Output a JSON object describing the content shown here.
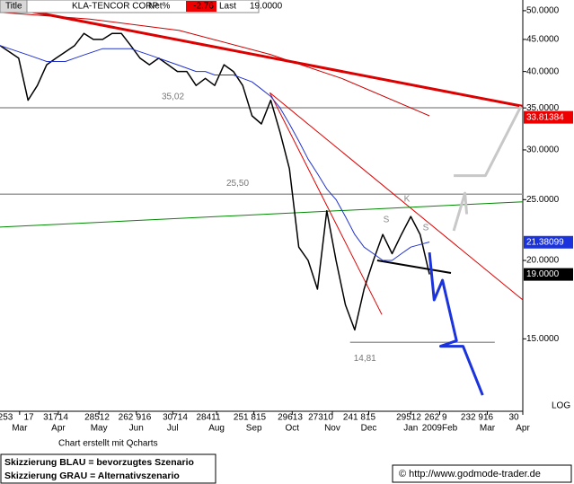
{
  "chart_data": {
    "type": "line",
    "header": {
      "button": "Title",
      "symbol": "KLA-TENCOR CORP",
      "net_label": "Net%",
      "net_value": -2.76,
      "last_label": "Last",
      "last_value": {
        "value": 19,
        "label": "19.0000"
      }
    },
    "log_scale": true,
    "y_scale_label": "LOG",
    "ylim": [
      11.5,
      52
    ],
    "yticks": [
      {
        "value": 15,
        "label": "15.0000"
      },
      {
        "value": 20,
        "label": "20.0000"
      },
      {
        "value": 25,
        "label": "25.0000"
      },
      {
        "value": 30,
        "label": "30.0000"
      },
      {
        "value": 35,
        "label": "35.0000"
      },
      {
        "value": 40,
        "label": "40.0000"
      },
      {
        "value": 45,
        "label": "45.0000"
      },
      {
        "value": 50,
        "label": "50.0000"
      }
    ],
    "xlim": [
      0,
      56
    ],
    "xticks": [
      {
        "value": 2.1,
        "label": "Mar"
      },
      {
        "value": 6.25,
        "label": "Apr"
      },
      {
        "value": 10.6,
        "label": "May"
      },
      {
        "value": 14.6,
        "label": "Jun"
      },
      {
        "value": 18.5,
        "label": "Jul"
      },
      {
        "value": 23.2,
        "label": "Aug"
      },
      {
        "value": 27.2,
        "label": "Sep"
      },
      {
        "value": 31.3,
        "label": "Oct"
      },
      {
        "value": 35.6,
        "label": "Nov"
      },
      {
        "value": 39.5,
        "label": "Dec"
      },
      {
        "value": 44,
        "label": "Jan"
      },
      {
        "value": 47.1,
        "label": "2009Feb"
      },
      {
        "value": 52.2,
        "label": "Mar"
      },
      {
        "value": 56,
        "label": "Apr"
      }
    ],
    "x_day_labels": [
      "253",
      "17",
      "31714",
      "28512",
      "262",
      "916",
      "30714",
      "28411",
      "251 815",
      "29613",
      "27310",
      "241 815",
      "29512",
      "262 9",
      "232 916",
      "30"
    ],
    "series": [
      {
        "color": "#000000",
        "width": 1.5,
        "x": [
          0,
          1,
          2,
          3,
          4,
          5,
          6,
          7,
          8,
          9,
          10,
          11,
          12,
          13,
          14,
          15,
          16,
          17,
          18,
          19,
          20,
          21,
          22,
          23,
          24,
          25,
          26,
          27,
          28,
          29,
          30,
          31,
          32,
          33,
          34,
          35,
          36,
          37,
          38,
          39,
          40,
          41,
          42,
          43,
          44,
          45,
          46
        ],
        "values": [
          44,
          43,
          42,
          36,
          38,
          41,
          42,
          43,
          44,
          46,
          45,
          45,
          46,
          46,
          44,
          42,
          41,
          42,
          41,
          40,
          40,
          38,
          39,
          38,
          41,
          40,
          38,
          34,
          33,
          36,
          32,
          28,
          21,
          20,
          18,
          24,
          20,
          17,
          15.5,
          18,
          20,
          22,
          20.5,
          22,
          23.5,
          22,
          19
        ]
      },
      {
        "color": "#2233cc",
        "width": 1,
        "x": [
          0,
          1,
          2,
          3,
          4,
          5,
          6,
          7,
          8,
          9,
          10,
          11,
          12,
          13,
          14,
          15,
          16,
          17,
          18,
          19,
          20,
          21,
          22,
          23,
          24,
          25,
          26,
          27,
          28,
          29,
          30,
          31,
          32,
          33,
          34,
          35,
          36,
          37,
          38,
          39,
          40,
          41,
          42,
          43,
          44,
          45,
          46
        ],
        "values": [
          44,
          43.5,
          43,
          42.5,
          42,
          41.5,
          41.5,
          41.5,
          42,
          42.5,
          43,
          43.5,
          43.5,
          43.5,
          43.5,
          43,
          42.5,
          42,
          41.5,
          41,
          40.5,
          40,
          40,
          39.5,
          39.5,
          39.5,
          39,
          38.5,
          37.5,
          36.5,
          35,
          33,
          31,
          29,
          27.5,
          26,
          25,
          23.5,
          22,
          21,
          20.5,
          20,
          20,
          20.5,
          21,
          21.2,
          21.4
        ]
      },
      {
        "color": "#cc0000",
        "width": 1,
        "x": [
          0,
          9.6,
          19.2,
          28.9,
          36.6,
          46
        ],
        "values": [
          49.7,
          48.5,
          46.5,
          42.6,
          39,
          34
        ]
      }
    ],
    "levels": [
      {
        "value": 35.02,
        "label": "35,02",
        "x": [
          0,
          56
        ]
      },
      {
        "value": 25.5,
        "label": "25,50",
        "x": [
          0,
          56
        ]
      },
      {
        "value": 14.81,
        "label": "14,81",
        "x": [
          37.5,
          53
        ]
      }
    ],
    "trendlines": [
      {
        "color": "#dd0000",
        "width": 3,
        "x": [
          2.9,
          56
        ],
        "values": [
          50,
          35.2
        ]
      },
      {
        "color": "#dd0000",
        "width": 1,
        "x": [
          28.9,
          56
        ],
        "values": [
          37,
          17.3
        ]
      },
      {
        "color": "#dd0000",
        "width": 1,
        "x": [
          28.9,
          40.9
        ],
        "values": [
          37,
          16.4
        ]
      },
      {
        "color": "#008800",
        "width": 1,
        "x": [
          0,
          56
        ],
        "values": [
          22.6,
          24.8
        ]
      },
      {
        "color": "#000000",
        "width": 2,
        "x": [
          40.4,
          48.3
        ],
        "values": [
          20,
          19.1
        ]
      },
      {
        "color": "#1a33dd",
        "width": 3,
        "x": [
          46,
          46.5,
          47.4,
          48.9,
          47.2,
          49.6,
          51.7
        ],
        "values": [
          20.6,
          17.3,
          18.6,
          14.9,
          14.6,
          14.6,
          12.2
        ]
      },
      {
        "color": "#c8c8c8",
        "width": 3,
        "x": [
          48.6,
          49.8,
          50,
          null,
          48.6,
          52,
          55.8
        ],
        "values": [
          22.3,
          25.6,
          23.7,
          null,
          27.3,
          27.3,
          35.2
        ]
      }
    ],
    "pattern_labels": [
      "S",
      "K",
      "S"
    ],
    "price_tags": [
      {
        "value": 33.81384,
        "color": "#ee0000"
      },
      {
        "value": 21.38099,
        "color": "#1a33dd"
      },
      {
        "value": {
          "value": 19,
          "label": "19.0000"
        },
        "color": "#000000"
      }
    ]
  },
  "footer": {
    "credit": "Chart erstellt mit Qcharts",
    "legend_blue": "Skizzierung BLAU = bevorzugtes Szenario",
    "legend_gray": "Skizzierung GRAU = Alternativszenario",
    "copyright": "© http://www.godmode-trader.de"
  }
}
